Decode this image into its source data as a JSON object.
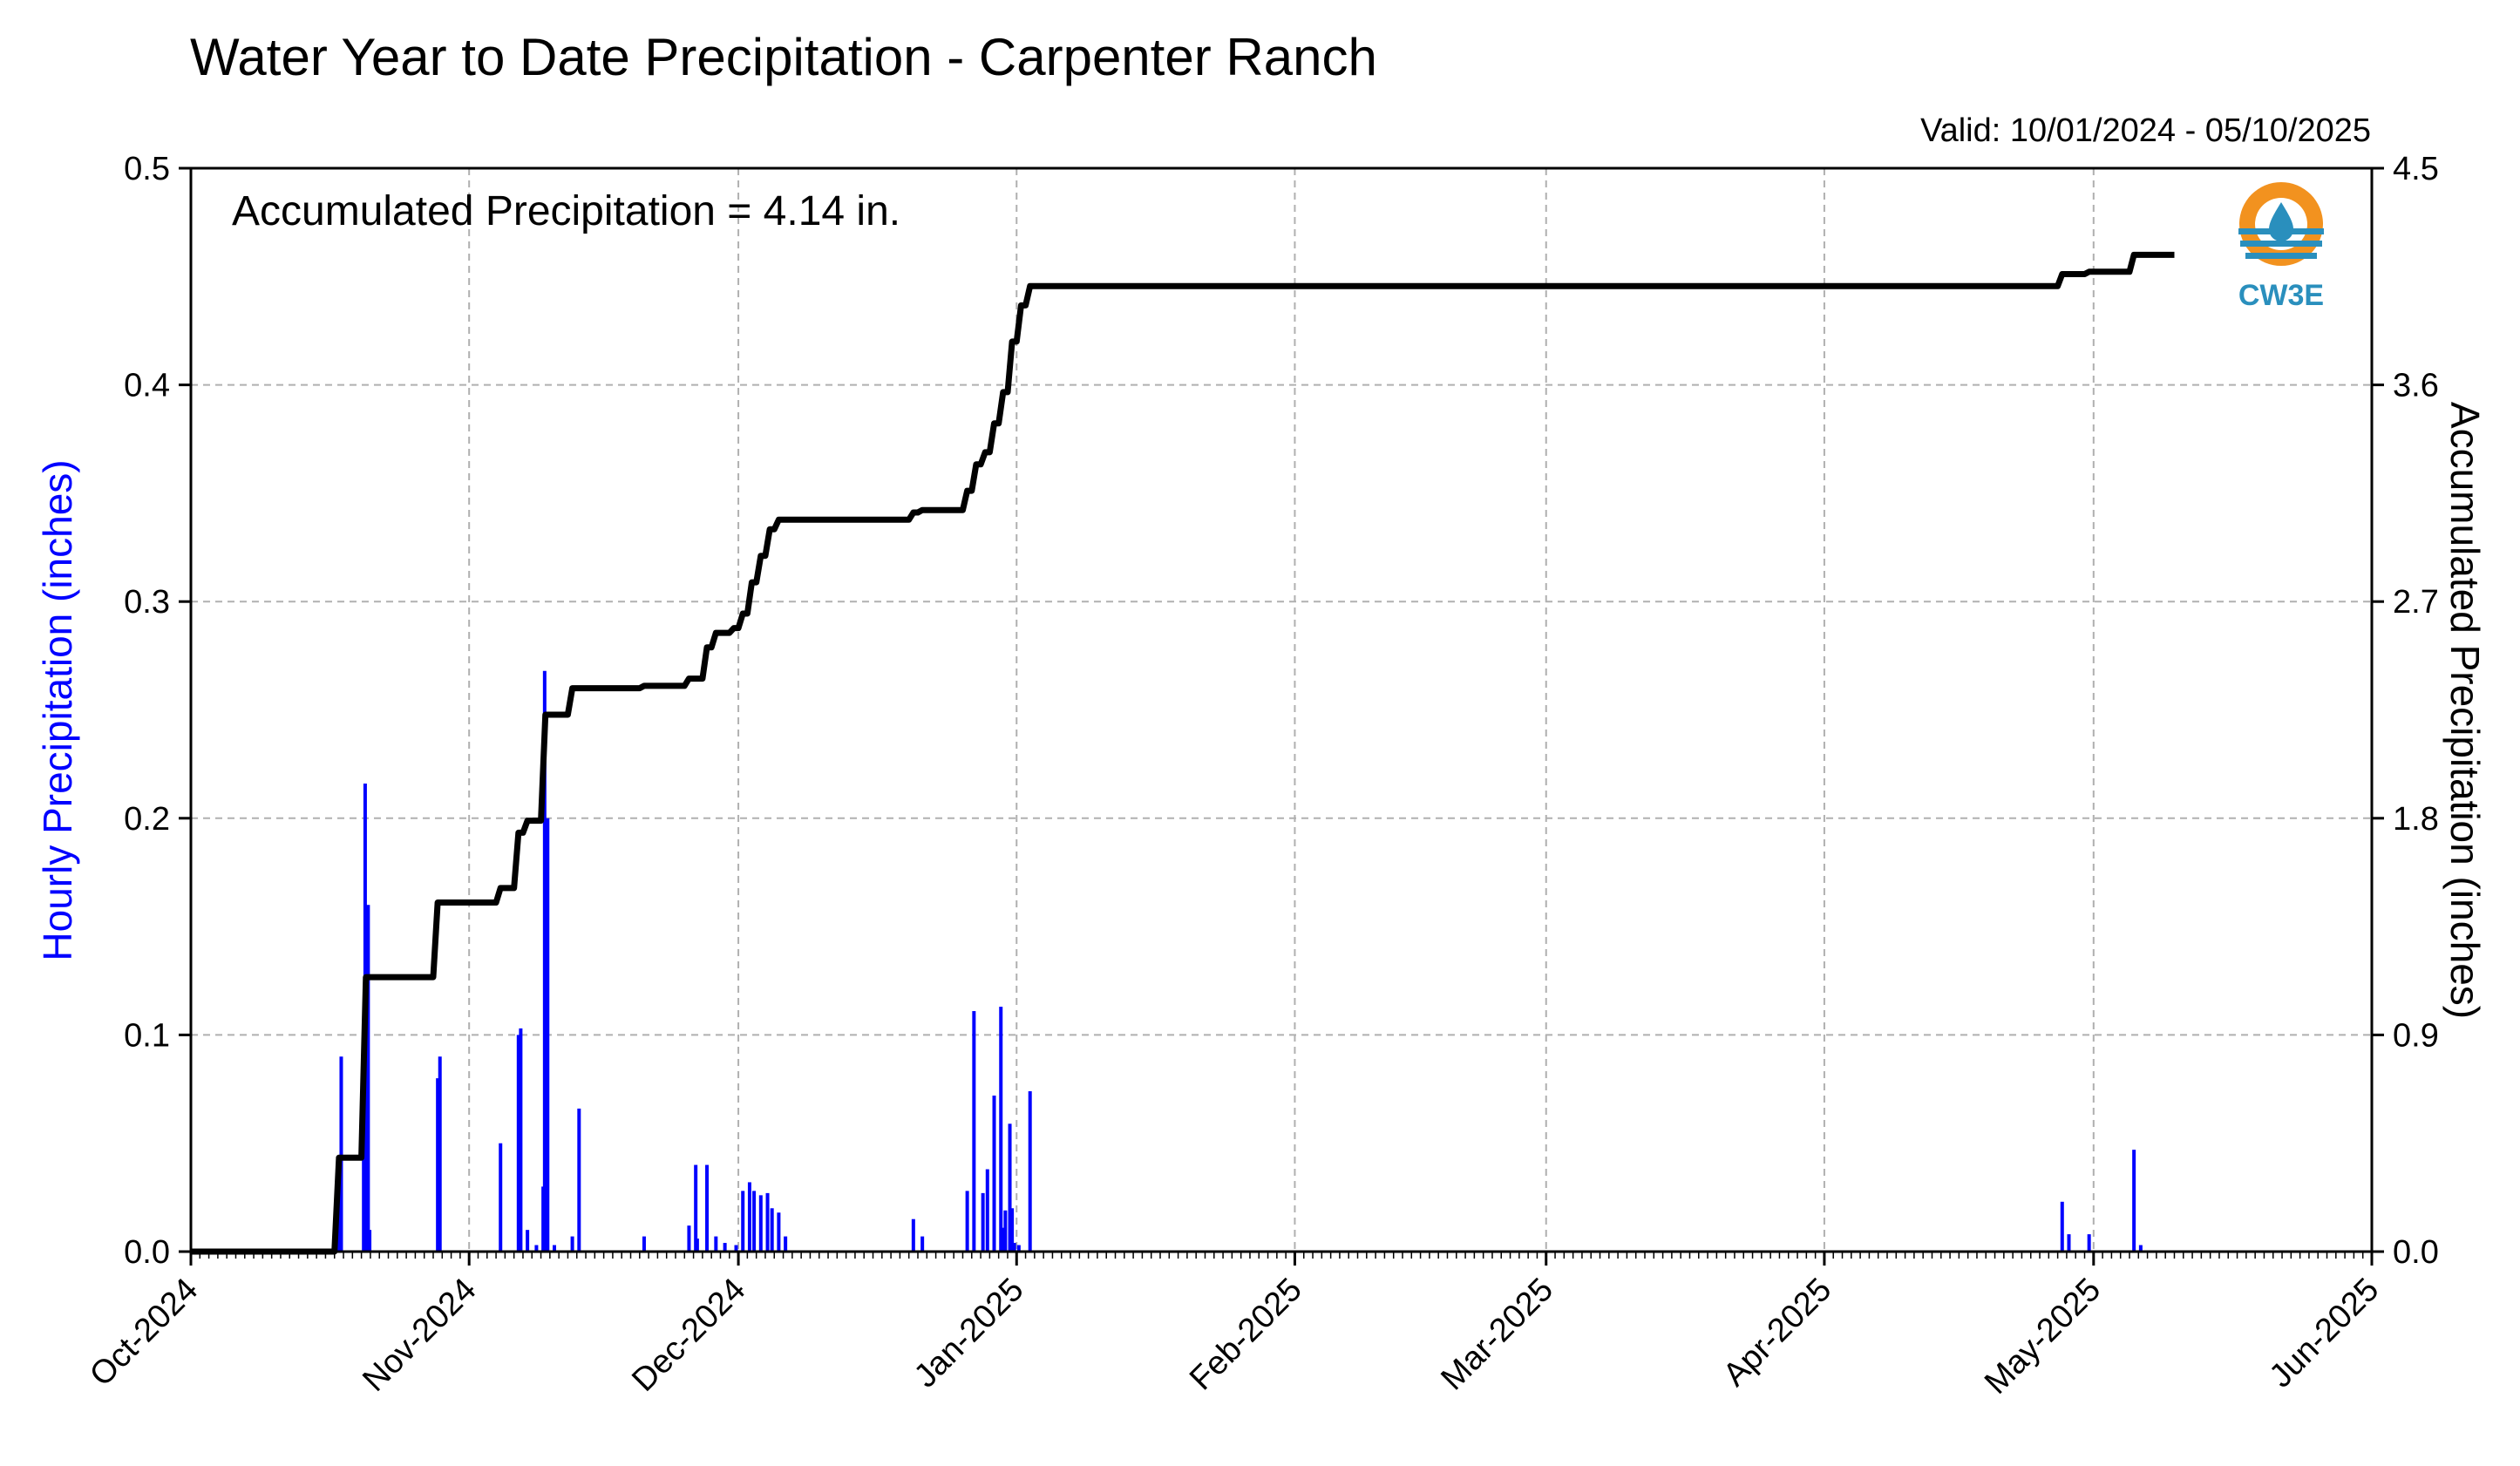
{
  "chart_data": {
    "type": "bar",
    "title": "Water Year to Date Precipitation - Carpenter Ranch",
    "subtitle": "Valid: 10/01/2024 - 05/10/2025",
    "annotation": "Accumulated Precipitation = 4.14 in.",
    "ylabel_left": "Hourly Precipitation (inches)",
    "ylabel_right": "Accumulated Precipitation (inches)",
    "ylim_left": [
      0,
      0.5
    ],
    "ylim_right": [
      0,
      4.5
    ],
    "xlim": [
      "2024-10-01",
      "2025-06-01"
    ],
    "x_tick_labels": [
      "Oct-2024",
      "Nov-2024",
      "Dec-2024",
      "Jan-2025",
      "Feb-2025",
      "Mar-2025",
      "Apr-2025",
      "May-2025",
      "Jun-2025"
    ],
    "y_left_tick_labels": [
      "0.0",
      "0.1",
      "0.2",
      "0.3",
      "0.4",
      "0.5"
    ],
    "y_right_tick_labels": [
      "0.0",
      "0.9",
      "1.8",
      "2.7",
      "3.6",
      "4.5"
    ],
    "grid": true,
    "colors": {
      "hourly": "#0000ff",
      "accumulated": "#000000",
      "grid": "#b0b0b0"
    },
    "logo": {
      "text": "CW3E"
    },
    "series": [
      {
        "name": "Hourly Precipitation (inches)",
        "type": "bar",
        "axis": "left",
        "x": [
          "2024-10-17T10:00",
          "2024-10-17T18:00",
          "2024-10-20T06:00",
          "2024-10-20T10:00",
          "2024-10-20T18:00",
          "2024-10-20T22:00",
          "2024-10-28T12:00",
          "2024-10-28T18:00",
          "2024-11-04T12:00",
          "2024-11-06T12:00",
          "2024-11-06T18:00",
          "2024-11-07T12:00",
          "2024-11-08T12:00",
          "2024-11-09T06:00",
          "2024-11-09T10:00",
          "2024-11-09T18:00",
          "2024-11-10T12:00",
          "2024-11-12T12:00",
          "2024-11-13T06:00",
          "2024-11-20T12:00",
          "2024-11-25T12:00",
          "2024-11-26T06:00",
          "2024-11-26T10:00",
          "2024-11-27T12:00",
          "2024-11-28T12:00",
          "2024-11-29T12:00",
          "2024-11-30T18:00",
          "2024-12-01T12:00",
          "2024-12-02T06:00",
          "2024-12-02T18:00",
          "2024-12-03T12:00",
          "2024-12-04T06:00",
          "2024-12-04T18:00",
          "2024-12-05T12:00",
          "2024-12-06T06:00",
          "2024-12-20T12:00",
          "2024-12-21T12:00",
          "2024-12-26T12:00",
          "2024-12-27T06:00",
          "2024-12-28T06:00",
          "2024-12-28T18:00",
          "2024-12-29T12:00",
          "2024-12-30T06:00",
          "2024-12-30T12:00",
          "2024-12-30T18:00",
          "2024-12-31T06:00",
          "2024-12-31T12:00",
          "2024-12-31T18:00",
          "2025-01-01T06:00",
          "2025-01-02T12:00",
          "2025-04-27T12:00",
          "2025-04-28T06:00",
          "2025-04-30T12:00",
          "2025-05-05T12:00",
          "2025-05-06T06:00"
        ],
        "values": [
          0.02,
          0.09,
          0.05,
          0.216,
          0.16,
          0.01,
          0.08,
          0.09,
          0.05,
          0.1,
          0.103,
          0.01,
          0.003,
          0.03,
          0.268,
          0.2,
          0.003,
          0.007,
          0.066,
          0.007,
          0.012,
          0.04,
          0.006,
          0.04,
          0.007,
          0.004,
          0.003,
          0.028,
          0.032,
          0.028,
          0.026,
          0.027,
          0.02,
          0.018,
          0.007,
          0.015,
          0.007,
          0.028,
          0.111,
          0.027,
          0.038,
          0.072,
          0.113,
          0.011,
          0.019,
          0.059,
          0.02,
          0.004,
          0.003,
          0.074,
          0.023,
          0.008,
          0.008,
          0.047,
          0.003
        ]
      },
      {
        "name": "Accumulated Precipitation (inches)",
        "type": "line",
        "axis": "right",
        "x": [
          "2024-10-01",
          "2024-10-17",
          "2024-10-17T12:00",
          "2024-10-20",
          "2024-10-20T12:00",
          "2024-10-28",
          "2024-10-28T12:00",
          "2024-11-04",
          "2024-11-04T12:00",
          "2024-11-06",
          "2024-11-06T12:00",
          "2024-11-07",
          "2024-11-07T12:00",
          "2024-11-09",
          "2024-11-09T12:00",
          "2024-11-12",
          "2024-11-12T12:00",
          "2024-11-20",
          "2024-11-20T12:00",
          "2024-11-25",
          "2024-11-25T12:00",
          "2024-11-27",
          "2024-11-27T12:00",
          "2024-11-28",
          "2024-11-28T12:00",
          "2024-11-30",
          "2024-11-30T12:00",
          "2024-12-01",
          "2024-12-01T12:00",
          "2024-12-02",
          "2024-12-02T12:00",
          "2024-12-03",
          "2024-12-03T12:00",
          "2024-12-04",
          "2024-12-04T12:00",
          "2024-12-05",
          "2024-12-05T12:00",
          "2024-12-20",
          "2024-12-20T12:00",
          "2024-12-21",
          "2024-12-21T12:00",
          "2024-12-26",
          "2024-12-26T12:00",
          "2024-12-27",
          "2024-12-27T12:00",
          "2024-12-28",
          "2024-12-28T12:00",
          "2024-12-29",
          "2024-12-29T12:00",
          "2024-12-30",
          "2024-12-30T12:00",
          "2024-12-31",
          "2024-12-31T12:00",
          "2025-01-01",
          "2025-01-01T12:00",
          "2025-01-02",
          "2025-01-02T12:00",
          "2025-04-27",
          "2025-04-27T12:00",
          "2025-04-30",
          "2025-04-30T12:00",
          "2025-05-05",
          "2025-05-05T12:00",
          "2025-05-10"
        ],
        "values": [
          0.0,
          0.0,
          0.39,
          0.39,
          1.14,
          1.14,
          1.45,
          1.45,
          1.51,
          1.51,
          1.74,
          1.74,
          1.79,
          1.79,
          2.23,
          2.23,
          2.34,
          2.34,
          2.35,
          2.35,
          2.38,
          2.38,
          2.51,
          2.51,
          2.57,
          2.57,
          2.59,
          2.59,
          2.65,
          2.65,
          2.78,
          2.78,
          2.89,
          2.89,
          3.0,
          3.0,
          3.04,
          3.04,
          3.07,
          3.07,
          3.08,
          3.08,
          3.16,
          3.16,
          3.27,
          3.27,
          3.32,
          3.32,
          3.44,
          3.44,
          3.57,
          3.57,
          3.78,
          3.78,
          3.93,
          3.93,
          4.01,
          4.01,
          4.06,
          4.06,
          4.07,
          4.07,
          4.14,
          4.14
        ]
      }
    ]
  }
}
